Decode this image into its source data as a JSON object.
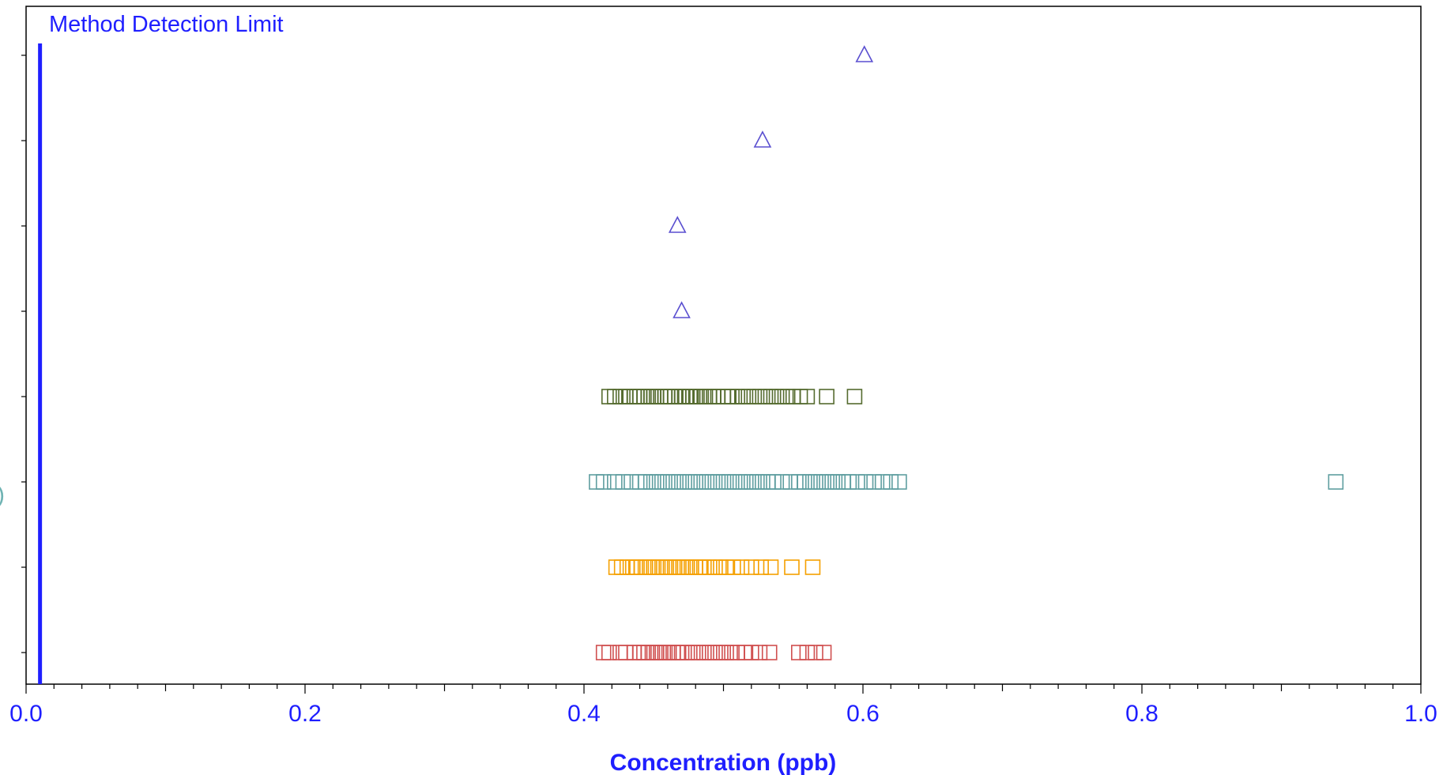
{
  "chart_data": {
    "type": "scatter",
    "xlabel": "Concentration  (ppb)",
    "xlim": [
      0.0,
      1.0
    ],
    "x_ticks": [
      "0.0",
      "0.2",
      "0.4",
      "0.6",
      "0.8",
      "1.0"
    ],
    "grid": false,
    "left_edge_text": ")",
    "reference_line": {
      "label": "Method Detection Limit",
      "x": 0.01,
      "color": "#1f1fff"
    },
    "rows": 8,
    "series": [
      {
        "row": 1,
        "marker": "triangle",
        "color": "#5a4fd0",
        "values": [
          0.601
        ]
      },
      {
        "row": 2,
        "marker": "triangle",
        "color": "#5a4fd0",
        "values": [
          0.528
        ]
      },
      {
        "row": 3,
        "marker": "triangle",
        "color": "#5a4fd0",
        "values": [
          0.467
        ]
      },
      {
        "row": 4,
        "marker": "triangle",
        "color": "#5a4fd0",
        "values": [
          0.47
        ]
      },
      {
        "row": 5,
        "marker": "square",
        "color": "#556b2f",
        "values": [
          0.418,
          0.422,
          0.426,
          0.43,
          0.433,
          0.436,
          0.438,
          0.44,
          0.443,
          0.446,
          0.448,
          0.45,
          0.452,
          0.455,
          0.458,
          0.46,
          0.462,
          0.465,
          0.468,
          0.47,
          0.473,
          0.476,
          0.478,
          0.481,
          0.484,
          0.487,
          0.49,
          0.493,
          0.496,
          0.5,
          0.503,
          0.506,
          0.51,
          0.514,
          0.518,
          0.522,
          0.526,
          0.53,
          0.534,
          0.538,
          0.542,
          0.546,
          0.55,
          0.555,
          0.56,
          0.574,
          0.594
        ]
      },
      {
        "row": 6,
        "marker": "square",
        "color": "#5f9ea0",
        "values": [
          0.409,
          0.414,
          0.422,
          0.428,
          0.434,
          0.44,
          0.444,
          0.448,
          0.452,
          0.456,
          0.46,
          0.464,
          0.468,
          0.472,
          0.476,
          0.48,
          0.484,
          0.488,
          0.492,
          0.496,
          0.5,
          0.504,
          0.508,
          0.512,
          0.516,
          0.52,
          0.524,
          0.528,
          0.532,
          0.536,
          0.542,
          0.548,
          0.554,
          0.558,
          0.562,
          0.566,
          0.57,
          0.574,
          0.578,
          0.582,
          0.586,
          0.59,
          0.596,
          0.602,
          0.608,
          0.614,
          0.62,
          0.626,
          0.939
        ]
      },
      {
        "row": 7,
        "marker": "square",
        "color": "#f5a000",
        "values": [
          0.423,
          0.427,
          0.431,
          0.435,
          0.438,
          0.441,
          0.444,
          0.447,
          0.45,
          0.453,
          0.456,
          0.459,
          0.462,
          0.465,
          0.468,
          0.471,
          0.474,
          0.477,
          0.48,
          0.483,
          0.486,
          0.49,
          0.494,
          0.498,
          0.502,
          0.507,
          0.513,
          0.52,
          0.527,
          0.534,
          0.549,
          0.564
        ]
      },
      {
        "row": 8,
        "marker": "square",
        "color": "#d05050",
        "values": [
          0.414,
          0.418,
          0.426,
          0.43,
          0.436,
          0.44,
          0.443,
          0.446,
          0.449,
          0.452,
          0.455,
          0.458,
          0.461,
          0.464,
          0.467,
          0.47,
          0.474,
          0.478,
          0.482,
          0.486,
          0.49,
          0.494,
          0.498,
          0.502,
          0.506,
          0.51,
          0.515,
          0.52,
          0.526,
          0.533,
          0.554,
          0.56,
          0.566,
          0.572
        ]
      }
    ]
  }
}
